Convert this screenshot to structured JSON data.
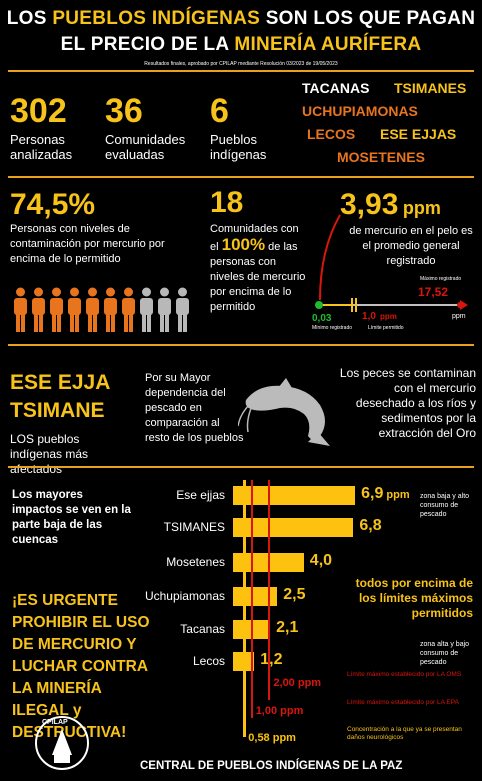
{
  "header": {
    "line1_pre": "LOS ",
    "line1_hl": "PUEBLOS INDÍGENAS",
    "line1_post": " SON LOS QUE PAGAN",
    "line2_pre": "EL PRECIO DE LA ",
    "line2_hl": "MINERÍA AURÍFERA",
    "subtitle": "Resultados finales, aprobado por CPILAP mediante Resolución 03/2023 de 19/05/2023"
  },
  "stats": [
    {
      "value": "302",
      "label": "Personas analizadas"
    },
    {
      "value": "36",
      "label": "Comunidades evaluadas"
    },
    {
      "value": "6",
      "label": "Pueblos indígenas"
    }
  ],
  "peoples": [
    "TACANAS",
    "TSIMANES",
    "UCHUPIAMONAS",
    "LECOS",
    "ESE EJJAS",
    "MOSETENES"
  ],
  "contamination": {
    "pct_value": "74,5%",
    "pct_label": "Personas con niveles de contaminación por mercurio por encima de lo permitido",
    "communities_value": "18",
    "communities_pre": "Comunidades con el",
    "communities_hl": "100%",
    "communities_post": "de las personas con niveles de mercurio por encima de lo permitido",
    "avg_value": "3,93",
    "avg_unit": "ppm",
    "avg_label": "de mercurio en el pelo es el promedio general registrado",
    "scale": {
      "max_label": "Máximo registrado",
      "max_value": "17,52",
      "min_value": "0,03",
      "min_label": "Mínimo registrado",
      "limit_value": "1,0",
      "limit_unit": "ppm",
      "limit_label": "Límite permitido",
      "axis_unit": "ppm"
    },
    "people_figures": {
      "total": 10,
      "affected": 7
    }
  },
  "affected": {
    "name1": "ESE EJJA",
    "name2": "TSIMANE",
    "label": "LOS pueblos indígenas más afectados",
    "fish_dependency": "Por su Mayor dependencia del pescado en comparación al resto de los pueblos",
    "fish_text": "Los peces se contaminan con el mercurio desechado a los ríos y sedimentos por la extracción del Oro",
    "fish_icon": "catfish-icon"
  },
  "impact_note": "Los mayores impactos se ven en la parte baja de las cuencas",
  "urgent": "¡ES URGENTE PROHIBIR EL USO DE MERCURIO Y LUCHAR CONTRA LA MINERÍA ILEGAL y DESTRUCTIVA!",
  "chart_data": {
    "type": "bar",
    "orientation": "horizontal",
    "categories": [
      "Ese ejjas",
      "TSIMANES",
      "Mosetenes",
      "Uchupiamonas",
      "Tacanas",
      "Lecos"
    ],
    "values": [
      6.9,
      6.8,
      4.0,
      2.5,
      2.1,
      1.2
    ],
    "value_labels": [
      "6,9",
      "6,8",
      "4,0",
      "2,5",
      "2,1",
      "1,2"
    ],
    "first_unit": "ppm",
    "xlim": [
      0,
      7.5
    ],
    "reference_lines": [
      {
        "value": 2.0,
        "label": "2,00 ppm",
        "desc": "Límite máximo establecido por LA OMS",
        "color": "#d8160c"
      },
      {
        "value": 1.0,
        "label": "1,00 ppm",
        "desc": "Límite máximo establecido por LA EPA",
        "color": "#d8160c"
      },
      {
        "value": 0.58,
        "label": "0,58 ppm",
        "desc": "Concentración a la que ya se presentan daños neurológicos",
        "color": "#fcc20f"
      }
    ],
    "annotations": {
      "zona_baja": "zona baja y alto consumo de pescado",
      "todos": "todos por encima de los límites máximos permitidos",
      "zona_alta": "zona alta y bajo consumo de pescado"
    }
  },
  "footer": {
    "logo_text": "CPILAP",
    "org": "CENTRAL DE PUEBLOS INDÍGENAS DE LA PAZ"
  },
  "colors": {
    "accent": "#f7c21a",
    "orange": "#e8741e",
    "red": "#d8160c",
    "bg": "#000000"
  }
}
